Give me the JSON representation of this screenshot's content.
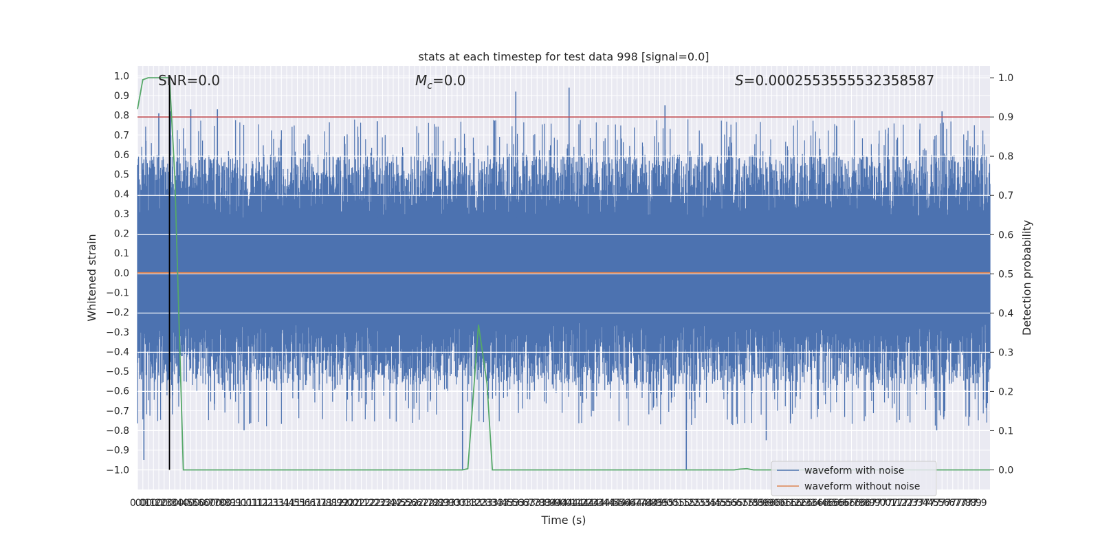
{
  "chart_data": {
    "type": "line",
    "title": "stats at each timestep for test data 998 [signal=0.0]",
    "xlabel": "Time (s)",
    "ylabel_left": "Whitened strain",
    "ylabel_right": "Detection probability",
    "xlim": [
      0.0,
      8.0
    ],
    "ylim_left": [
      -1.1,
      1.05
    ],
    "ylim_right": [
      -0.05,
      1.03
    ],
    "x_tick_step": 0.05,
    "x_tick_count": 159,
    "y_ticks_left": [
      "1.0",
      "0.9",
      "0.8",
      "0.7",
      "0.6",
      "0.5",
      "0.4",
      "0.3",
      "0.2",
      "0.1",
      "0.0",
      "-0.1",
      "-0.2",
      "-0.3",
      "-0.4",
      "-0.5",
      "-0.6",
      "-0.7",
      "-0.8",
      "-0.9",
      "-1.0"
    ],
    "y_ticks_right": [
      "1.0",
      "0.9",
      "0.8",
      "0.7",
      "0.6",
      "0.5",
      "0.4",
      "0.3",
      "0.2",
      "0.1",
      "0.0"
    ],
    "grid": true,
    "legend_position": "lower-right",
    "annotations": {
      "snr": "SNR=0.0",
      "mc_symbol": "M",
      "mc_sub": "c",
      "mc_value": "=0.0",
      "s_symbol": "S",
      "s_value": "=0.0002553555532358587"
    },
    "series": [
      {
        "name": "waveform with noise",
        "axis": "left",
        "color": "#4c72b0",
        "description_range": [
          -1.0,
          0.94
        ],
        "peaks": [
          {
            "x": 0.06,
            "y": -0.95
          },
          {
            "x": 0.2,
            "y": 0.81
          },
          {
            "x": 0.31,
            "y": 0.82
          },
          {
            "x": 0.5,
            "y": 0.83
          },
          {
            "x": 0.75,
            "y": 0.83
          },
          {
            "x": 1.0,
            "y": -0.8
          },
          {
            "x": 2.25,
            "y": 0.77
          },
          {
            "x": 3.05,
            "y": -1.0
          },
          {
            "x": 3.55,
            "y": 0.92
          },
          {
            "x": 4.05,
            "y": 0.94
          },
          {
            "x": 4.95,
            "y": 0.85
          },
          {
            "x": 5.15,
            "y": -1.0
          },
          {
            "x": 5.9,
            "y": -0.85
          },
          {
            "x": 7.55,
            "y": 0.82
          },
          {
            "x": 7.5,
            "y": -0.8
          }
        ]
      },
      {
        "name": "waveform without noise",
        "axis": "left",
        "color": "#dd8452",
        "x": [
          0.0,
          8.0
        ],
        "y": [
          0.0,
          0.0
        ]
      },
      {
        "name": "",
        "axis": "right",
        "color": "#55a868",
        "x": [
          0.0,
          0.05,
          0.1,
          0.3,
          0.35,
          0.43,
          3.05,
          3.1,
          3.2,
          3.28,
          3.33,
          5.6,
          5.65,
          5.72,
          5.78,
          8.0
        ],
        "y": [
          0.92,
          0.995,
          1.0,
          1.0,
          0.75,
          0.0,
          0.0,
          0.003,
          0.37,
          0.22,
          0.0,
          0.0,
          0.002,
          0.003,
          0.0,
          0.0
        ]
      }
    ],
    "threshold_line": {
      "axis": "right",
      "y": 0.9,
      "color": "#c44e52"
    },
    "marker_line": {
      "x": 0.3,
      "y0": -1.0,
      "y1": 1.0,
      "color": "#000000"
    }
  }
}
